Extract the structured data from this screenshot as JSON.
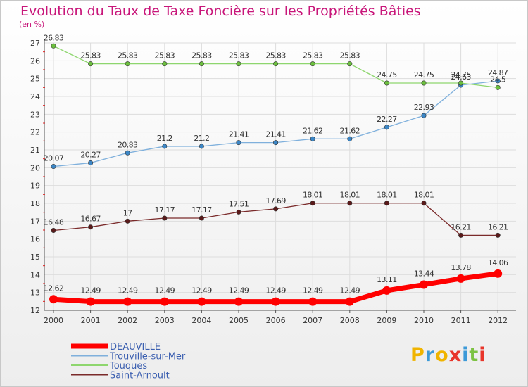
{
  "title": "Evolution du Taux de Taxe Foncière sur les Propriétés Bâties",
  "unit_label": "(en %)",
  "logo": {
    "letters": [
      "P",
      "r",
      "o",
      "x",
      "i",
      "t",
      "i"
    ],
    "colors": [
      "#f0b400",
      "#3c9ad8",
      "#f0b400",
      "#e8352a",
      "#3c9ad8",
      "#7cc242",
      "#e8352a"
    ]
  },
  "chart_data": {
    "type": "line",
    "title": "Evolution du Taux de Taxe Foncière sur les Propriétés Bâties",
    "ylabel": "(en %)",
    "xlabel": "",
    "x": [
      "2000",
      "2001",
      "2002",
      "2003",
      "2004",
      "2005",
      "2006",
      "2007",
      "2008",
      "2009",
      "2010",
      "2011",
      "2012"
    ],
    "ylim": [
      12,
      27
    ],
    "yticks": [
      "12",
      "13",
      "14",
      "15",
      "16",
      "17",
      "18",
      "19",
      "20",
      "21",
      "22",
      "23",
      "24",
      "25",
      "26",
      "27"
    ],
    "grid": true,
    "legend_position": "bottom-left",
    "series": [
      {
        "name": "DEAUVILLE",
        "color": "#ff0000",
        "marker": "#ff0000",
        "width": 7,
        "label_pos": "above",
        "values": [
          12.62,
          12.49,
          12.49,
          12.49,
          12.49,
          12.49,
          12.49,
          12.49,
          12.49,
          13.11,
          13.44,
          13.78,
          14.06
        ],
        "labels": [
          "12.62",
          "12.49",
          "12.49",
          "12.49",
          "12.49",
          "12.49",
          "12.49",
          "12.49",
          "12.49",
          "13.11",
          "13.44",
          "13.78",
          "14.06"
        ]
      },
      {
        "name": "Trouville-sur-Mer",
        "color": "#7fb0dc",
        "marker": "#3b86c6",
        "width": 1.3,
        "label_pos": "above",
        "values": [
          20.07,
          20.27,
          20.83,
          21.2,
          21.2,
          21.41,
          21.41,
          21.62,
          21.62,
          22.27,
          22.93,
          24.63,
          24.87
        ],
        "labels": [
          "20.07",
          "20.27",
          "20.83",
          "21.2",
          "21.2",
          "21.41",
          "21.41",
          "21.62",
          "21.62",
          "22.27",
          "22.93",
          "24.63",
          "24.87"
        ]
      },
      {
        "name": "Touques",
        "color": "#8ed66e",
        "marker": "#6cc03e",
        "width": 1.3,
        "label_pos": "above",
        "values": [
          26.83,
          25.83,
          25.83,
          25.83,
          25.83,
          25.83,
          25.83,
          25.83,
          25.83,
          24.75,
          24.75,
          24.75,
          24.5
        ],
        "labels": [
          "26.83",
          "25.83",
          "25.83",
          "25.83",
          "25.83",
          "25.83",
          "25.83",
          "25.83",
          "25.83",
          "24.75",
          "24.75",
          "24.75",
          "24.5"
        ]
      },
      {
        "name": "Saint-Arnoult",
        "color": "#7a2a2a",
        "marker": "#5a1a1a",
        "width": 1.3,
        "label_pos": "above",
        "values": [
          16.48,
          16.67,
          17,
          17.17,
          17.17,
          17.51,
          17.69,
          18.01,
          18.01,
          18.01,
          18.01,
          16.21,
          16.21
        ],
        "labels": [
          "16.48",
          "16.67",
          "17",
          "17.17",
          "17.17",
          "17.51",
          "17.69",
          "18.01",
          "18.01",
          "18.01",
          "18.01",
          "16.21",
          "16.21"
        ]
      }
    ]
  }
}
